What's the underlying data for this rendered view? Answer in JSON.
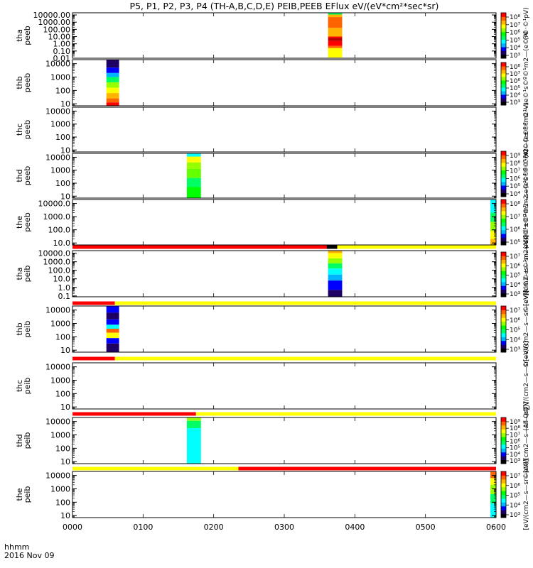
{
  "title": "P5, P1, P2, P3, P4 (TH-A,B,C,D,E) PEIB,PEEB EFlux eV/(eV*cm²*sec*sr)",
  "x_axis": {
    "ticks": [
      "0000",
      "0100",
      "0200",
      "0300",
      "0400",
      "0500",
      "0600"
    ],
    "label_line1": "hhmm",
    "label_line2": "2016 Nov 09"
  },
  "colors": {
    "bar_red": "#ff0000",
    "bar_yellow": "#ffff00",
    "colormap": [
      "#000000",
      "#1e0064",
      "#0000ff",
      "#00b4ff",
      "#00ffff",
      "#00ff64",
      "#00ff00",
      "#96ff00",
      "#ffff00",
      "#ffb400",
      "#ff6400",
      "#ff0000"
    ]
  },
  "chart_data": {
    "type": "heatmap",
    "xlim_hours": [
      0,
      6
    ],
    "panels": [
      {
        "label1": "tha",
        "label2": "peeb",
        "ytick_labels": [
          "10000.00",
          "1000.00",
          "100.00",
          "10.00",
          "1.00",
          "0.10",
          "0.01"
        ],
        "ytick_logs": [
          4,
          3,
          2,
          1,
          0,
          -1,
          -2
        ],
        "ylog_range": [
          -2,
          4.3
        ],
        "blocks": [
          {
            "x0": 3.62,
            "x1": 3.82,
            "stripes": [
              [
                4.3,
                4.05,
                "#00ff64"
              ],
              [
                4.05,
                3.7,
                "#ffb400"
              ],
              [
                3.7,
                2.2,
                "#ff6400"
              ],
              [
                2.2,
                1.0,
                "#ffb400"
              ],
              [
                1.0,
                0.8,
                "#ff0000"
              ],
              [
                0.8,
                0.4,
                "#b40000"
              ],
              [
                0.4,
                -0.3,
                "#ff0000"
              ],
              [
                -0.3,
                -0.6,
                "#ff6400"
              ],
              [
                -0.6,
                -1.9,
                "#ffff00"
              ]
            ]
          }
        ],
        "colorbar": {
          "tick_labels": [
            "10⁸",
            "10⁷",
            "10⁶",
            "10⁵",
            "10⁴",
            "10³"
          ]
        },
        "side_label": "(Al"
      },
      {
        "label1": "thb",
        "label2": "peeb",
        "ytick_labels": [
          "10000",
          "1000",
          "100",
          "10"
        ],
        "ytick_logs": [
          4,
          3,
          2,
          1
        ],
        "ylog_range": [
          0.85,
          4.3
        ],
        "blocks": [
          {
            "x0": 0.48,
            "x1": 0.66,
            "stripes": [
              [
                4.3,
                3.7,
                "#1e0064"
              ],
              [
                3.7,
                3.3,
                "#0000ff"
              ],
              [
                3.3,
                3.0,
                "#00b4ff"
              ],
              [
                3.0,
                2.6,
                "#00ff64"
              ],
              [
                2.6,
                2.2,
                "#96ff00"
              ],
              [
                2.2,
                1.8,
                "#ffff00"
              ],
              [
                1.8,
                1.4,
                "#ffb400"
              ],
              [
                1.4,
                1.1,
                "#ff6400"
              ],
              [
                1.1,
                0.85,
                "#ff0000"
              ]
            ]
          }
        ],
        "colorbar": {
          "tick_labels": [
            "10⁸",
            "10⁷",
            "10⁶",
            "10⁵",
            "10⁴",
            "10³"
          ]
        },
        "side_label": "(Al©©±©¹m2—se©¹s©º©¹m2—(e©¹©·©¹pV)"
      },
      {
        "label1": "thc",
        "label2": "peeb",
        "ytick_labels": [
          "10000",
          "1000",
          "100",
          "10"
        ],
        "ytick_logs": [
          4,
          3,
          2,
          1
        ],
        "ylog_range": [
          0.85,
          4.3
        ],
        "blocks": []
      },
      {
        "label1": "thd",
        "label2": "peeb",
        "ytick_labels": [
          "10000",
          "1000",
          "100",
          "10"
        ],
        "ytick_logs": [
          4,
          3,
          2,
          1
        ],
        "ylog_range": [
          0.85,
          4.3
        ],
        "blocks": [
          {
            "x0": 1.62,
            "x1": 1.82,
            "stripes": [
              [
                4.3,
                4.05,
                "#00ffff"
              ],
              [
                4.05,
                3.6,
                "#ffff00"
              ],
              [
                3.6,
                3.1,
                "#96ff00"
              ],
              [
                3.1,
                2.4,
                "#64ff00"
              ],
              [
                2.4,
                1.7,
                "#00ff64"
              ],
              [
                1.7,
                0.85,
                "#00ff00"
              ]
            ]
          }
        ],
        "colorbar": {
          "tick_labels": [
            "10⁹",
            "10⁸",
            "10⁷",
            "10⁶",
            "10⁵",
            "10⁴"
          ]
        },
        "side_label": "(Al©©±©¹m2—se©¹s©º©¹m2—(e©¹©·©¹V)"
      },
      {
        "label1": "the",
        "label2": "peeb",
        "ytick_labels": [
          "10000.0",
          "1000.0",
          "100.0",
          "10.0"
        ],
        "ytick_logs": [
          4,
          3,
          2,
          1
        ],
        "ylog_range": [
          0.85,
          4.3
        ],
        "blocks": [
          {
            "x0": 5.92,
            "x1": 6.0,
            "stripes": [
              [
                4.3,
                3.3,
                "#00ffff"
              ],
              [
                3.3,
                2.6,
                "#00ff64"
              ],
              [
                2.6,
                1.9,
                "#96ff00"
              ],
              [
                1.9,
                1.3,
                "#ffff00"
              ],
              [
                1.3,
                0.85,
                "#ffb400"
              ]
            ]
          }
        ],
        "colorbar": {
          "tick_labels": [
            "10⁸",
            "10⁷",
            "10⁶",
            "10⁵"
          ]
        },
        "side_label": "(Al©©±©¹m2—se©¹s©º©¹m2—(e©¹©·©¹V)"
      },
      {
        "label1": "tha",
        "label2": "peib",
        "ytick_labels": [
          "10000.0",
          "1000.0",
          "100.0",
          "10.0",
          "1.0",
          "0.1"
        ],
        "ytick_logs": [
          4,
          3,
          2,
          1,
          0,
          -1
        ],
        "ylog_range": [
          -1.1,
          4.3
        ],
        "bar": [
          [
            0,
            3.6,
            "#ff0000"
          ],
          [
            3.6,
            3.75,
            "#000000"
          ],
          [
            3.75,
            6.0,
            "#ffff00"
          ]
        ],
        "blocks": [
          {
            "x0": 3.62,
            "x1": 3.82,
            "stripes": [
              [
                4.3,
                4.0,
                "#ffb400"
              ],
              [
                4.0,
                3.4,
                "#ffff00"
              ],
              [
                3.4,
                2.8,
                "#96ff00"
              ],
              [
                2.8,
                2.2,
                "#00ff64"
              ],
              [
                2.2,
                1.5,
                "#00ffff"
              ],
              [
                1.5,
                0.8,
                "#00b4ff"
              ],
              [
                0.8,
                -0.3,
                "#0000ff"
              ],
              [
                -0.3,
                -1.1,
                "#1e0064"
              ]
            ]
          }
        ],
        "colorbar": {
          "tick_labels": [
            "10⁷",
            "10⁶",
            "10⁵",
            "10⁴",
            "10³"
          ]
        },
        "side_label": "©[eV/(cm2—s—sr—eV)]"
      },
      {
        "label1": "thb",
        "label2": "peib",
        "ytick_labels": [
          "10000",
          "1000",
          "100",
          "10"
        ],
        "ytick_logs": [
          4,
          3,
          2,
          1
        ],
        "ylog_range": [
          0.85,
          4.3
        ],
        "bar": [
          [
            0,
            0.6,
            "#ff0000"
          ],
          [
            0.6,
            6.0,
            "#ffff00"
          ]
        ],
        "blocks": [
          {
            "x0": 0.48,
            "x1": 0.66,
            "stripes": [
              [
                4.3,
                3.8,
                "#0000ff"
              ],
              [
                3.8,
                3.3,
                "#1e0064"
              ],
              [
                3.3,
                2.9,
                "#0000ff"
              ],
              [
                2.9,
                2.6,
                "#00ffff"
              ],
              [
                2.6,
                2.3,
                "#ff6400"
              ],
              [
                2.3,
                1.9,
                "#ffff00"
              ],
              [
                1.9,
                1.5,
                "#0000ff"
              ],
              [
                1.5,
                0.85,
                "#1e0064"
              ]
            ]
          }
        ],
        "colorbar": {
          "tick_labels": [
            "10⁷",
            "10⁶",
            "10⁵",
            "10⁴",
            "10³"
          ]
        },
        "side_label": "©[eV/(cm2—s—sr—eV)]"
      },
      {
        "label1": "thc",
        "label2": "peib",
        "ytick_labels": [
          "10000",
          "1000",
          "100",
          "10"
        ],
        "ytick_logs": [
          4,
          3,
          2,
          1
        ],
        "ylog_range": [
          0.85,
          4.3
        ],
        "bar": [
          [
            0,
            0.6,
            "#ff0000"
          ],
          [
            0.6,
            6.0,
            "#ffff00"
          ]
        ],
        "blocks": [],
        "side_label": "(All Qs∑V/(cm2—s—sr—eV)]"
      },
      {
        "label1": "thd",
        "label2": "peib",
        "ytick_labels": [
          "10000",
          "1000",
          "100",
          "10"
        ],
        "ytick_logs": [
          4,
          3,
          2,
          1
        ],
        "ylog_range": [
          0.85,
          4.3
        ],
        "bar": [
          [
            0,
            1.75,
            "#ff0000"
          ],
          [
            1.75,
            6.0,
            "#ffff00"
          ]
        ],
        "blocks": [
          {
            "x0": 1.62,
            "x1": 1.82,
            "stripes": [
              [
                4.3,
                4.05,
                "#96ff00"
              ],
              [
                4.05,
                3.5,
                "#00ff64"
              ],
              [
                3.5,
                0.85,
                "#00ffff"
              ]
            ]
          }
        ],
        "colorbar": {
          "tick_labels": [
            "10⁹",
            "10⁸",
            "10⁷",
            "10⁶",
            "10⁵",
            "10⁴",
            "10³"
          ]
        },
        "side_label": "©[eV/(cm2—s—sr—eV)]"
      },
      {
        "label1": "the",
        "label2": "peib",
        "ytick_labels": [
          "10000",
          "1000",
          "100",
          "10"
        ],
        "ytick_logs": [
          4,
          3,
          2,
          1
        ],
        "ylog_range": [
          0.85,
          4.3
        ],
        "bar": [
          [
            0,
            2.35,
            "#ffff00"
          ],
          [
            2.35,
            6.0,
            "#ff0000"
          ]
        ],
        "blocks": [
          {
            "x0": 5.92,
            "x1": 6.0,
            "stripes": [
              [
                4.3,
                3.8,
                "#ff6400"
              ],
              [
                3.8,
                3.3,
                "#ffff00"
              ],
              [
                3.3,
                2.6,
                "#96ff00"
              ],
              [
                2.6,
                1.9,
                "#00ff64"
              ],
              [
                1.9,
                0.85,
                "#00ffff"
              ]
            ]
          }
        ],
        "colorbar": {
          "tick_labels": [
            "10⁷",
            "10⁶",
            "10⁵",
            "10⁴",
            "10³"
          ]
        },
        "side_label": "[eV/(cm2—s—sr—eV)]"
      }
    ]
  }
}
